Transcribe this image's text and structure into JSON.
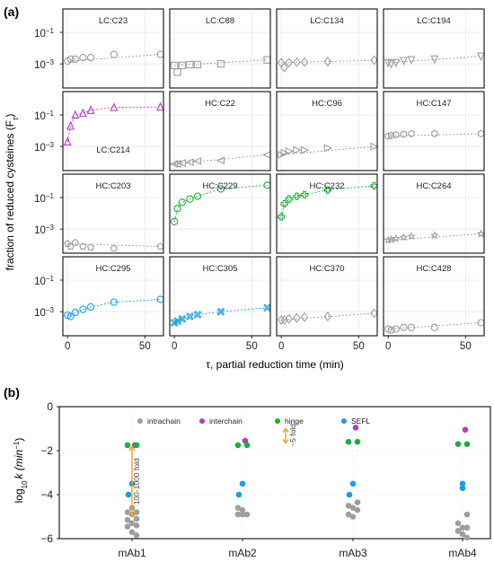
{
  "panel_a": {
    "label": "(a)",
    "ylabel": "fraction of reduced cysteines (F",
    "ylabel_sub": "τ",
    "ylabel_close": ")",
    "xlabel": "τ, partial reduction time (min)",
    "ytick_labels": [
      "10",
      "10"
    ],
    "ytick_exps": [
      "−1",
      "−3"
    ],
    "xtick_labels": [
      "0",
      "50"
    ]
  },
  "panel_b": {
    "label": "(b)",
    "ylabel_main": "log",
    "ylabel_sub": "10",
    "ylabel_rest": "k (min",
    "ylabel_exp": "−1",
    "ylabel_close": ")",
    "annotation_100_1000": "100-1000 fold",
    "annotation_5": "~5 fold",
    "ytick_labels": [
      "0",
      "−2",
      "−4",
      "−6"
    ],
    "legend": [
      {
        "label": "intrachain",
        "color": "#9e9e9e"
      },
      {
        "label": "interchain",
        "color": "#b040b8"
      },
      {
        "label": "hinge",
        "color": "#1aae3c"
      },
      {
        "label": "SEFL",
        "color": "#1a9fe0"
      }
    ]
  },
  "chart_data": [
    {
      "type": "scatter",
      "title": "",
      "xlabel": "τ, partial reduction time (min)",
      "ylabel": "fraction of reduced cysteines (Fτ)",
      "yscale": "log",
      "ylim": [
        3e-05,
        3
      ],
      "xlim": [
        -3,
        62
      ],
      "x": [
        0,
        2,
        5,
        10,
        15,
        30,
        60
      ],
      "grid": true,
      "panels": [
        {
          "name": "LC:C23",
          "color": "#9e9e9e",
          "marker": "circle",
          "fit": "line",
          "values": [
            0.0015,
            0.002,
            0.002,
            0.0025,
            0.0025,
            0.004,
            0.004
          ]
        },
        {
          "name": "LC:C88",
          "color": "#9e9e9e",
          "marker": "square",
          "fit": "line",
          "values": [
            0.0008,
            0.0003,
            0.0008,
            0.0009,
            0.0009,
            0.001,
            0.0018
          ]
        },
        {
          "name": "LC:C134",
          "color": "#9e9e9e",
          "marker": "diamond",
          "fit": "line",
          "values": [
            0.0012,
            0.0006,
            0.0012,
            0.0013,
            0.0013,
            0.0014,
            0.0017
          ]
        },
        {
          "name": "LC:C194",
          "color": "#9e9e9e",
          "marker": "triangle-down",
          "fit": "line",
          "values": [
            0.0012,
            0.001,
            0.0012,
            0.0016,
            0.0018,
            0.002,
            0.003
          ]
        },
        {
          "name": "LC:C214",
          "color": "#b040b8",
          "marker": "triangle-up",
          "fit": "curve",
          "values": [
            0.002,
            0.02,
            0.1,
            0.13,
            0.2,
            0.3,
            0.32
          ]
        },
        {
          "name": "HC:C22",
          "color": "#9e9e9e",
          "marker": "triangle-left",
          "fit": "line",
          "values": [
            8e-05,
            8e-05,
            9e-05,
            0.0001,
            0.00012,
            0.00013,
            0.0003
          ]
        },
        {
          "name": "HC:C96",
          "color": "#9e9e9e",
          "marker": "triangle-right",
          "fit": "line",
          "values": [
            0.0003,
            0.0004,
            0.0005,
            0.0006,
            0.0006,
            0.0008,
            0.001
          ]
        },
        {
          "name": "HC:C147",
          "color": "#9e9e9e",
          "marker": "hexagon",
          "fit": "line",
          "values": [
            0.0045,
            0.005,
            0.0055,
            0.006,
            0.0065,
            0.0065,
            0.0065
          ]
        },
        {
          "name": "HC:C203",
          "color": "#9e9e9e",
          "marker": "pentagon",
          "fit": "line",
          "values": [
            0.00012,
            8e-05,
            0.00014,
            8e-05,
            7e-05,
            6e-05,
            8e-05
          ]
        },
        {
          "name": "HC:C229",
          "color": "#1aae3c",
          "marker": "circle",
          "fit": "curve",
          "values": [
            0.003,
            0.02,
            0.05,
            0.08,
            0.12,
            0.35,
            0.6
          ]
        },
        {
          "name": "HC:C232",
          "color": "#1aae3c",
          "marker": "plus",
          "fit": "curve",
          "values": [
            0.006,
            0.04,
            0.08,
            0.12,
            0.15,
            0.3,
            0.55
          ]
        },
        {
          "name": "HC:C264",
          "color": "#9e9e9e",
          "marker": "star",
          "fit": "line",
          "values": [
            0.0002,
            0.00022,
            0.00025,
            0.0003,
            0.00035,
            0.0004,
            0.0005
          ]
        },
        {
          "name": "HC:C295",
          "color": "#1a9fe0",
          "marker": "circle",
          "fit": "curve",
          "values": [
            0.0006,
            0.0005,
            0.0009,
            0.0014,
            0.002,
            0.004,
            0.006
          ]
        },
        {
          "name": "HC:C305",
          "color": "#1a9fe0",
          "marker": "x-square",
          "fit": "curve",
          "values": [
            0.0002,
            0.00025,
            0.00035,
            0.0005,
            0.00065,
            0.001,
            0.0018
          ]
        },
        {
          "name": "HC:C370",
          "color": "#9e9e9e",
          "marker": "diamond",
          "fit": "line",
          "values": [
            0.0003,
            0.0003,
            0.00035,
            0.0004,
            0.00045,
            0.0005,
            0.0008
          ]
        },
        {
          "name": "HC:C428",
          "color": "#9e9e9e",
          "marker": "circle",
          "fit": "line",
          "values": [
            8e-05,
            7e-05,
            8e-05,
            0.0001,
            0.0001,
            0.0001,
            0.0002
          ]
        }
      ]
    },
    {
      "type": "scatter",
      "title": "",
      "xlabel": "",
      "ylabel": "log10 k (min−1)",
      "ylim": [
        -6,
        0
      ],
      "categories": [
        "mAb1",
        "mAb2",
        "mAb3",
        "mAb4"
      ],
      "grid": true,
      "legend": "top",
      "series": [
        {
          "name": "intrachain",
          "color": "#9e9e9e",
          "points": [
            [
              0,
              -4.6
            ],
            [
              0,
              -4.8
            ],
            [
              0,
              -4.8
            ],
            [
              0,
              -4.9
            ],
            [
              0,
              -5.1
            ],
            [
              0,
              -5.15
            ],
            [
              0,
              -5.3
            ],
            [
              0,
              -5.4
            ],
            [
              0,
              -5.45
            ],
            [
              0,
              -5.7
            ],
            [
              0,
              -5.85
            ],
            [
              1,
              -4.6
            ],
            [
              1,
              -4.7
            ],
            [
              1,
              -4.9
            ],
            [
              1,
              -4.9
            ],
            [
              1,
              -4.9
            ],
            [
              2,
              -4.35
            ],
            [
              2,
              -4.5
            ],
            [
              2,
              -4.6
            ],
            [
              2,
              -4.7
            ],
            [
              2,
              -4.9
            ],
            [
              2,
              -5.0
            ],
            [
              3,
              -4.9
            ],
            [
              3,
              -5.3
            ],
            [
              3,
              -5.5
            ],
            [
              3,
              -5.5
            ],
            [
              3,
              -5.65
            ],
            [
              3,
              -5.8
            ],
            [
              3,
              -5.95
            ]
          ]
        },
        {
          "name": "interchain",
          "color": "#b040b8",
          "points": [
            [
              0,
              -1.75
            ],
            [
              1,
              -1.55
            ],
            [
              2,
              -0.95
            ],
            [
              3,
              -1.05
            ]
          ]
        },
        {
          "name": "hinge",
          "color": "#1aae3c",
          "points": [
            [
              0,
              -1.75
            ],
            [
              0,
              -1.75
            ],
            [
              1,
              -1.75
            ],
            [
              1,
              -1.75
            ],
            [
              2,
              -1.6
            ],
            [
              2,
              -1.6
            ],
            [
              3,
              -1.7
            ],
            [
              3,
              -1.7
            ]
          ]
        },
        {
          "name": "SEFL",
          "color": "#1a9fe0",
          "points": [
            [
              0,
              -3.5
            ],
            [
              0,
              -4.0
            ],
            [
              1,
              -3.5
            ],
            [
              1,
              -4.0
            ],
            [
              2,
              -3.5
            ],
            [
              2,
              -4.0
            ],
            [
              3,
              -3.5
            ],
            [
              3,
              -3.7
            ]
          ]
        }
      ]
    }
  ]
}
